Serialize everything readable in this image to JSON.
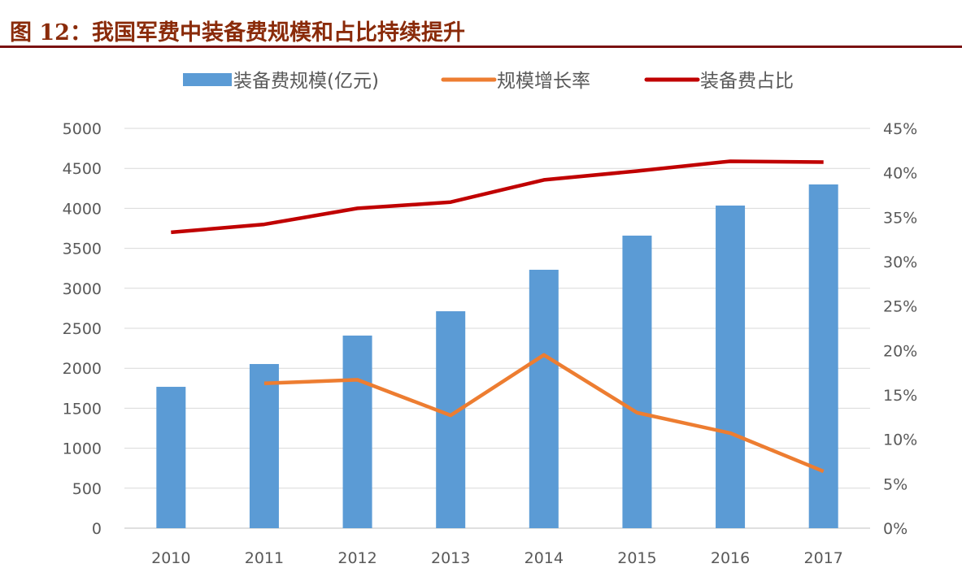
{
  "title": "图 12：我国军费中装备费规模和占比持续提升",
  "chart_data": {
    "type": "bar+line",
    "title": "图 12：我国军费中装备费规模和占比持续提升",
    "categories": [
      "2010",
      "2011",
      "2012",
      "2013",
      "2014",
      "2015",
      "2016",
      "2017"
    ],
    "series": [
      {
        "name": "装备费规模(亿元)",
        "type": "bar",
        "axis": "left",
        "color": "#5b9bd5",
        "values": [
          1768,
          2053,
          2409,
          2713,
          3232,
          3659,
          4035,
          4299
        ]
      },
      {
        "name": "规模增长率",
        "type": "line",
        "axis": "right",
        "color": "#ed7d31",
        "values": [
          null,
          16.3,
          16.7,
          12.7,
          19.5,
          13.0,
          10.7,
          6.4
        ]
      },
      {
        "name": "装备费占比",
        "type": "line",
        "axis": "right",
        "color": "#c00000",
        "values": [
          33.3,
          34.2,
          36.0,
          36.7,
          39.2,
          40.2,
          41.3,
          41.2
        ]
      }
    ],
    "y_left": {
      "min": 0,
      "max": 5000,
      "ticks": [
        "0",
        "500",
        "1000",
        "1500",
        "2000",
        "2500",
        "3000",
        "3500",
        "4000",
        "4500",
        "5000"
      ]
    },
    "y_right": {
      "min": 0,
      "max": 45,
      "unit": "%",
      "ticks": [
        "0%",
        "5%",
        "10%",
        "15%",
        "20%",
        "25%",
        "30%",
        "35%",
        "40%",
        "45%"
      ]
    },
    "grid": true,
    "legend": "top"
  }
}
